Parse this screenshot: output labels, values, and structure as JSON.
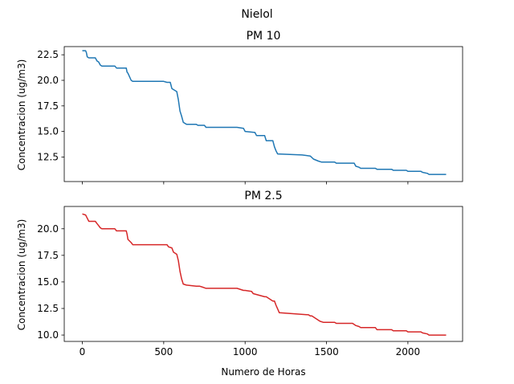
{
  "figure": {
    "suptitle": "Nielol"
  },
  "chart_data": [
    {
      "type": "line",
      "title": "PM 10",
      "xlabel": "",
      "ylabel": "Concentracion (ug/m3)",
      "color": "#1f77b4",
      "xlim": [
        -111,
        2336
      ],
      "ylim": [
        10.1,
        23.3
      ],
      "xticks": [
        0,
        500,
        1000,
        1500,
        2000
      ],
      "xtick_labels": [
        "",
        "",
        "",
        "",
        ""
      ],
      "yticks": [
        12.5,
        15.0,
        17.5,
        20.0,
        22.5
      ],
      "ytick_labels": [
        "12.5",
        "15.0",
        "17.5",
        "20.0",
        "22.5"
      ],
      "series": [
        {
          "x": [
            0,
            20,
            25,
            30,
            40,
            80,
            90,
            100,
            110,
            120,
            200,
            210,
            270,
            275,
            280,
            300,
            310,
            500,
            520,
            540,
            550,
            560,
            580,
            590,
            600,
            610,
            620,
            630,
            640,
            700,
            710,
            750,
            760,
            950,
            990,
            1000,
            1060,
            1070,
            1120,
            1130,
            1170,
            1180,
            1190,
            1200,
            1350,
            1400,
            1420,
            1450,
            1470,
            1550,
            1560,
            1670,
            1680,
            1700,
            1710,
            1800,
            1810,
            1900,
            1910,
            1990,
            2000,
            2080,
            2090,
            2120,
            2130,
            2235
          ],
          "y": [
            22.9,
            22.9,
            22.7,
            22.3,
            22.2,
            22.2,
            21.9,
            21.8,
            21.5,
            21.4,
            21.4,
            21.2,
            21.2,
            20.8,
            20.7,
            20.0,
            19.9,
            19.9,
            19.8,
            19.8,
            19.2,
            19.1,
            18.9,
            18.1,
            17.0,
            16.5,
            15.9,
            15.8,
            15.7,
            15.7,
            15.6,
            15.6,
            15.4,
            15.4,
            15.3,
            15.0,
            14.9,
            14.6,
            14.6,
            14.1,
            14.1,
            13.5,
            13.1,
            12.8,
            12.7,
            12.6,
            12.3,
            12.1,
            12.0,
            12.0,
            11.9,
            11.9,
            11.6,
            11.5,
            11.4,
            11.4,
            11.3,
            11.3,
            11.2,
            11.2,
            11.1,
            11.1,
            11.0,
            10.9,
            10.8,
            10.8
          ]
        }
      ]
    },
    {
      "type": "line",
      "title": "PM 2.5",
      "xlabel": "Numero de Horas",
      "ylabel": "Concentracion (ug/m3)",
      "color": "#d62728",
      "xlim": [
        -111,
        2336
      ],
      "ylim": [
        9.4,
        22.1
      ],
      "xticks": [
        0,
        500,
        1000,
        1500,
        2000
      ],
      "xtick_labels": [
        "0",
        "500",
        "1000",
        "1500",
        "2000"
      ],
      "yticks": [
        10.0,
        12.5,
        15.0,
        17.5,
        20.0
      ],
      "ytick_labels": [
        "10.0",
        "12.5",
        "15.0",
        "17.5",
        "20.0"
      ],
      "series": [
        {
          "x": [
            0,
            20,
            30,
            40,
            80,
            90,
            100,
            110,
            120,
            200,
            210,
            270,
            275,
            280,
            300,
            310,
            520,
            530,
            550,
            560,
            580,
            590,
            600,
            610,
            620,
            640,
            700,
            720,
            740,
            760,
            950,
            990,
            1000,
            1040,
            1050,
            1120,
            1130,
            1170,
            1180,
            1190,
            1210,
            1390,
            1400,
            1410,
            1440,
            1460,
            1480,
            1550,
            1560,
            1660,
            1680,
            1700,
            1710,
            1800,
            1810,
            1900,
            1910,
            1990,
            2000,
            2080,
            2090,
            2120,
            2130,
            2235
          ],
          "y": [
            21.4,
            21.3,
            21.0,
            20.7,
            20.7,
            20.5,
            20.3,
            20.1,
            20.0,
            20.0,
            19.8,
            19.8,
            19.5,
            19.0,
            18.7,
            18.5,
            18.5,
            18.3,
            18.2,
            17.8,
            17.6,
            17.0,
            16.0,
            15.3,
            14.8,
            14.7,
            14.6,
            14.6,
            14.5,
            14.4,
            14.4,
            14.2,
            14.2,
            14.1,
            13.9,
            13.6,
            13.6,
            13.2,
            13.2,
            12.8,
            12.1,
            11.9,
            11.8,
            11.8,
            11.5,
            11.3,
            11.2,
            11.2,
            11.1,
            11.1,
            10.9,
            10.8,
            10.7,
            10.7,
            10.5,
            10.5,
            10.4,
            10.4,
            10.3,
            10.3,
            10.2,
            10.1,
            10.0,
            10.0
          ]
        }
      ]
    }
  ]
}
